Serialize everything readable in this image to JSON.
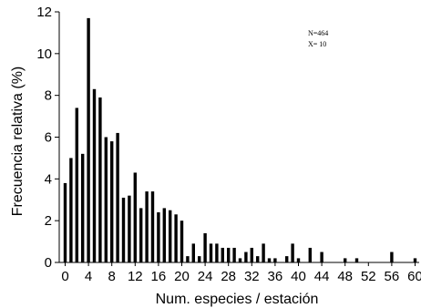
{
  "chart_data": {
    "type": "bar",
    "xlabel": "Num. especies / estación",
    "ylabel": "Frecuencia relativa (%)",
    "xlim": [
      -0.5,
      61
    ],
    "ylim": [
      0,
      12
    ],
    "xticks": [
      0,
      4,
      8,
      12,
      16,
      20,
      24,
      28,
      32,
      36,
      40,
      44,
      48,
      52,
      56,
      60
    ],
    "yticks": [
      0,
      2,
      4,
      6,
      8,
      10,
      12
    ],
    "grid": false,
    "legend": "none",
    "bar_color": "#000000",
    "x": [
      0,
      1,
      2,
      3,
      4,
      5,
      6,
      7,
      8,
      9,
      10,
      11,
      12,
      13,
      14,
      15,
      16,
      17,
      18,
      19,
      20,
      21,
      22,
      23,
      24,
      25,
      26,
      27,
      28,
      29,
      30,
      31,
      32,
      33,
      34,
      35,
      36,
      37,
      38,
      39,
      40,
      41,
      42,
      43,
      44,
      45,
      46,
      47,
      48,
      49,
      50,
      51,
      52,
      53,
      54,
      55,
      56,
      57,
      58,
      59,
      60
    ],
    "values": [
      3.8,
      5.0,
      7.4,
      5.2,
      11.7,
      8.3,
      7.9,
      6.0,
      5.8,
      6.2,
      3.1,
      3.2,
      4.3,
      2.6,
      3.4,
      3.4,
      2.4,
      2.6,
      2.5,
      2.3,
      2.0,
      0.3,
      0.9,
      0.3,
      1.4,
      0.9,
      0.9,
      0.7,
      0.7,
      0.7,
      0.2,
      0.5,
      0.7,
      0.3,
      0.9,
      0.2,
      0.2,
      0.0,
      0.3,
      0.9,
      0.2,
      0.0,
      0.7,
      0.0,
      0.5,
      0.0,
      0.0,
      0.0,
      0.2,
      0.0,
      0.2,
      0.0,
      0.0,
      0.0,
      0.0,
      0.0,
      0.5,
      0.0,
      0.0,
      0.0,
      0.2
    ],
    "annotations": [
      "N=464",
      "X= 10"
    ]
  }
}
